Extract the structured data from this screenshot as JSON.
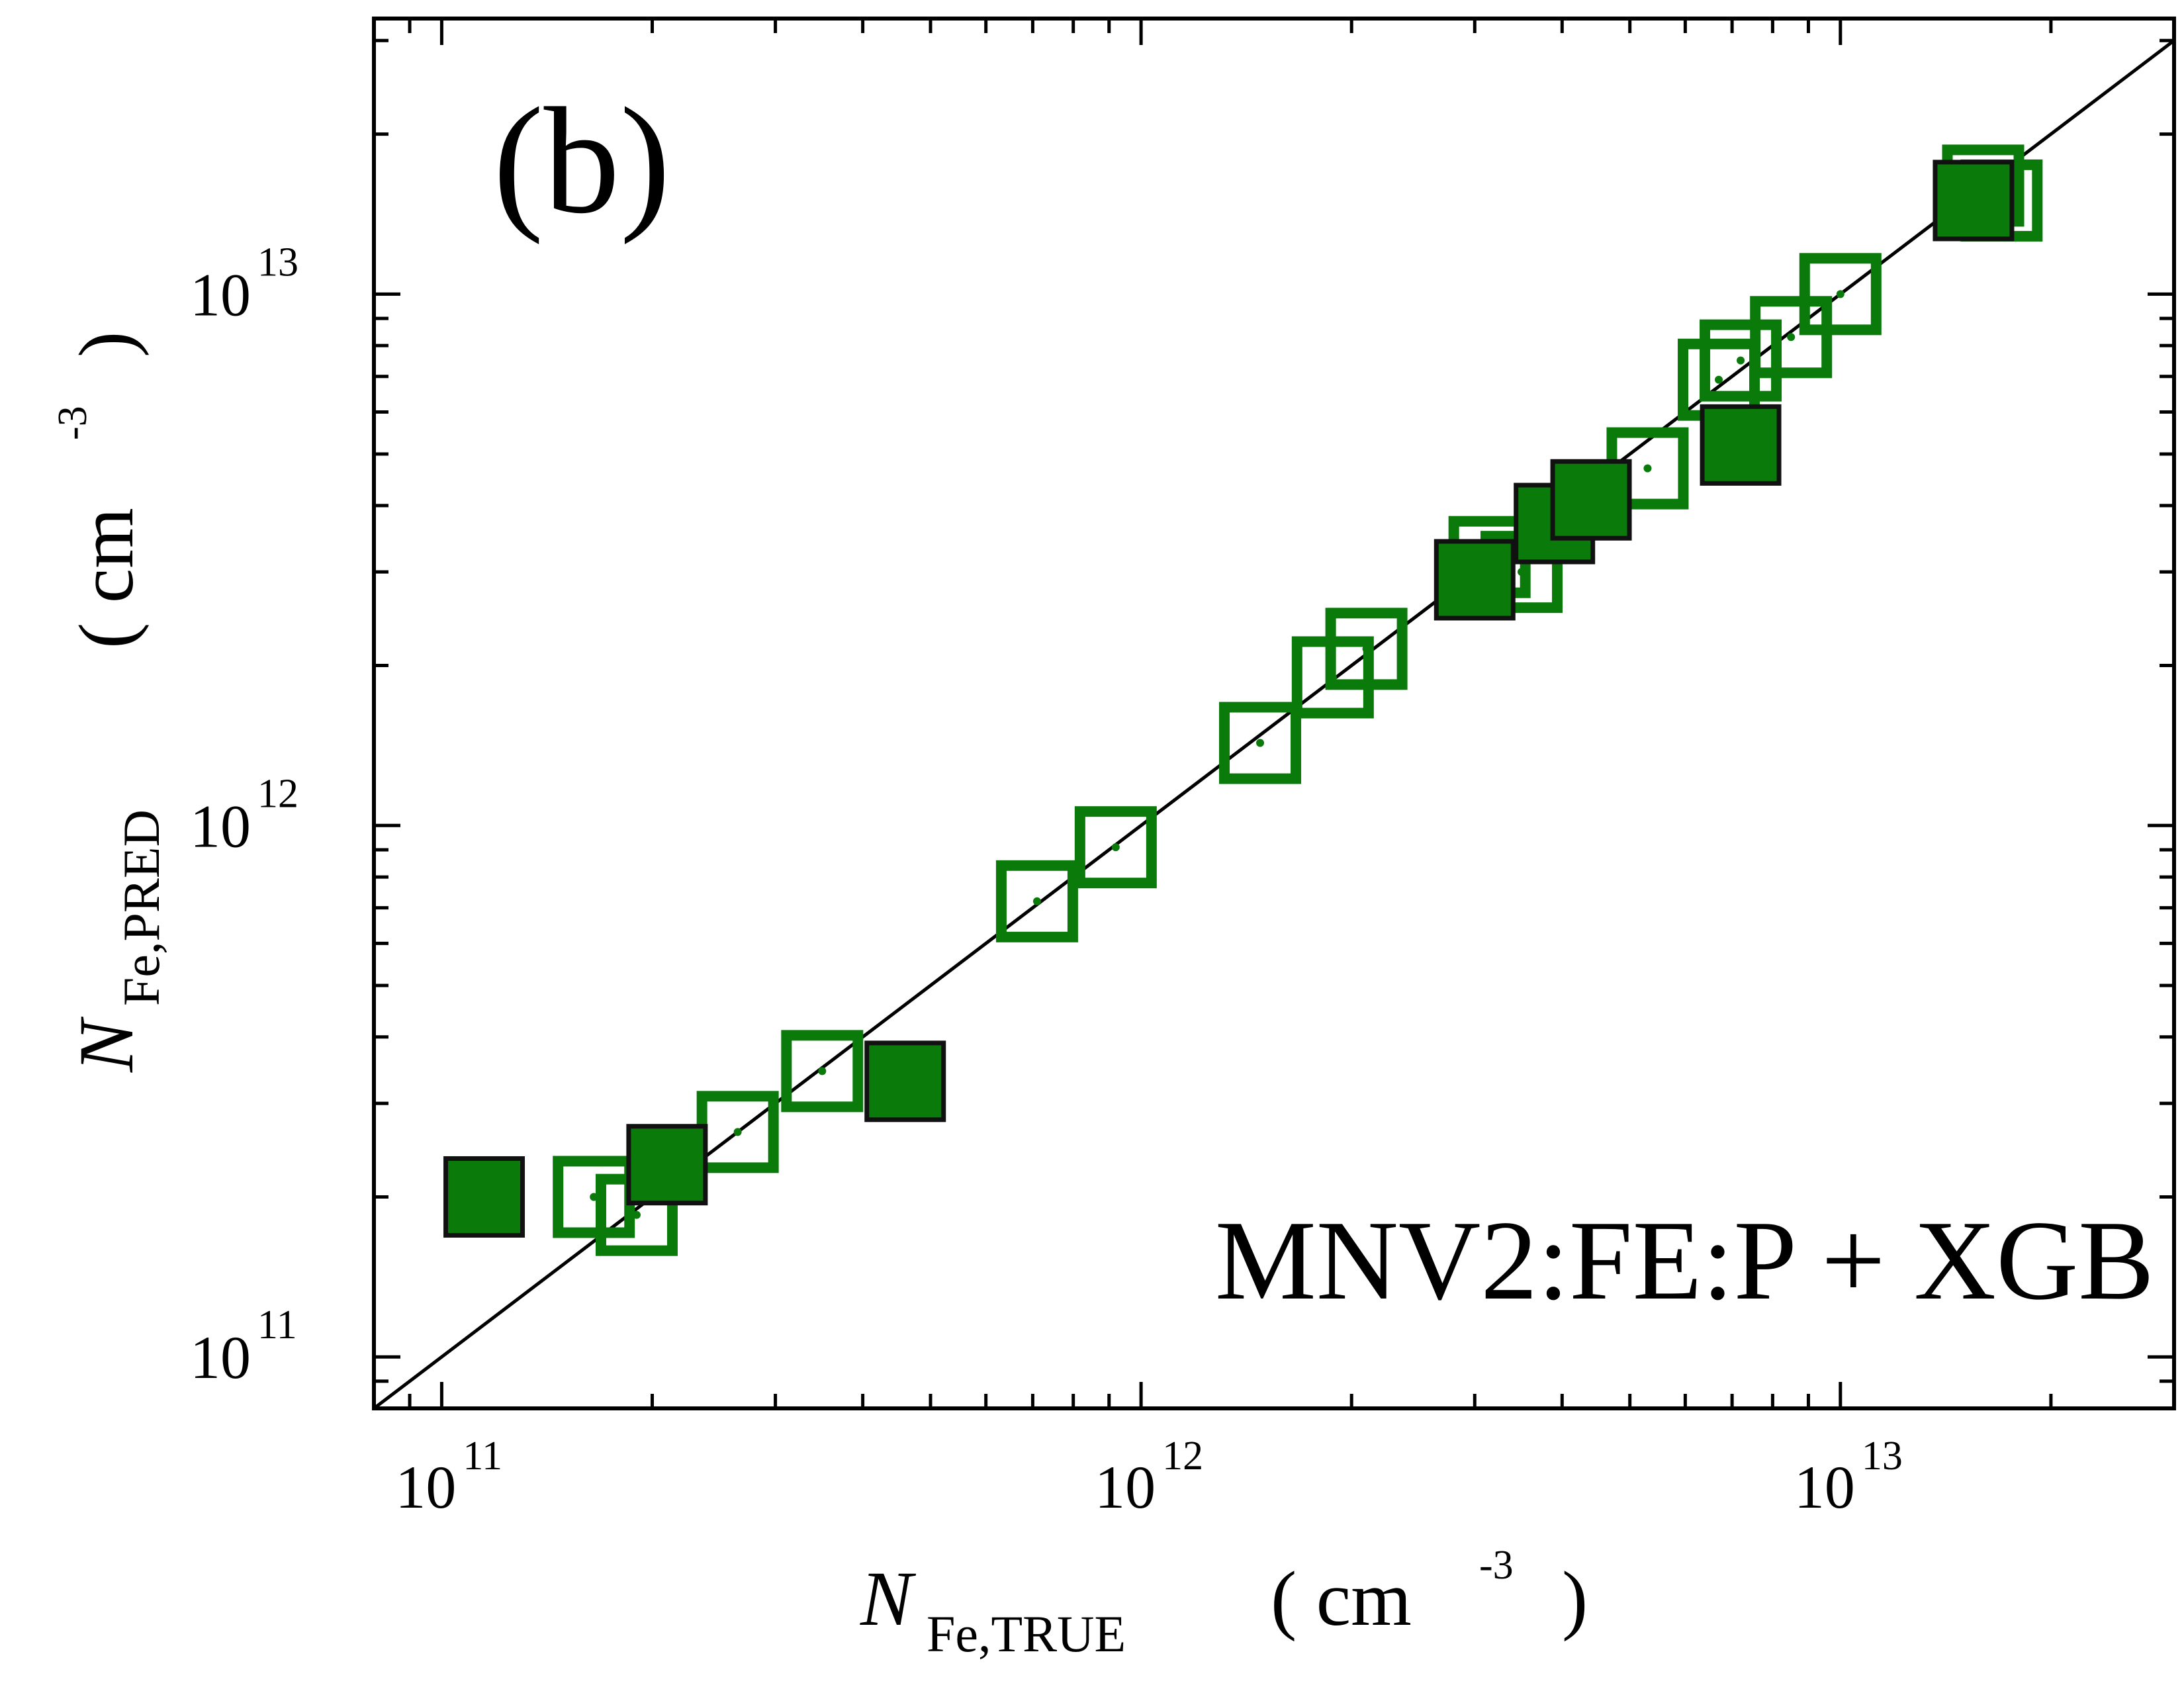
{
  "chart_data": {
    "type": "scatter",
    "panel_label": "(b)",
    "annotation": "MNV2:FE:P + XGB",
    "xlabel": {
      "main": "N",
      "sub": "Fe,TRUE",
      "unit_open": "( cm",
      "unit_exp": "-3",
      "unit_close": ")"
    },
    "ylabel": {
      "main": "N",
      "sub": "Fe,PRED",
      "unit_open": "( cm",
      "unit_exp": "-3",
      "unit_close": ")"
    },
    "x_scale": "log",
    "y_scale": "log",
    "xlim": [
      80000000000,
      30000000000000
    ],
    "ylim": [
      80000000000,
      33000000000000
    ],
    "x_ticks": [
      {
        "base": "10",
        "exp": "11",
        "value": 100000000000
      },
      {
        "base": "10",
        "exp": "12",
        "value": 1000000000000
      },
      {
        "base": "10",
        "exp": "13",
        "value": 10000000000000
      }
    ],
    "y_ticks": [
      {
        "base": "10",
        "exp": "11",
        "value": 100000000000
      },
      {
        "base": "10",
        "exp": "12",
        "value": 1000000000000
      },
      {
        "base": "10",
        "exp": "13",
        "value": 10000000000000
      }
    ],
    "reference_line": "y = x",
    "colors": {
      "marker": "#0a7a0a",
      "marker_edge_filled": "#111111",
      "line": "#000000"
    },
    "series": [
      {
        "marker": "open-square",
        "points": [
          {
            "x": 165000000000,
            "y": 200000000000
          },
          {
            "x": 190000000000,
            "y": 185000000000
          },
          {
            "x": 265000000000,
            "y": 265000000000
          },
          {
            "x": 350000000000,
            "y": 345000000000
          },
          {
            "x": 710000000000,
            "y": 720000000000
          },
          {
            "x": 920000000000,
            "y": 910000000000
          },
          {
            "x": 1480000000000,
            "y": 1430000000000
          },
          {
            "x": 1880000000000,
            "y": 1900000000000
          },
          {
            "x": 2100000000000,
            "y": 2150000000000
          },
          {
            "x": 3150000000000,
            "y": 3200000000000
          },
          {
            "x": 3500000000000,
            "y": 3000000000000
          },
          {
            "x": 5300000000000,
            "y": 4700000000000
          },
          {
            "x": 6700000000000,
            "y": 6900000000000
          },
          {
            "x": 7200000000000,
            "y": 7500000000000
          },
          {
            "x": 8500000000000,
            "y": 8300000000000
          },
          {
            "x": 10000000000000,
            "y": 10000000000000
          },
          {
            "x": 16000000000000,
            "y": 16000000000000
          },
          {
            "x": 17000000000000,
            "y": 15000000000000
          }
        ]
      },
      {
        "marker": "filled-square",
        "points": [
          {
            "x": 115000000000,
            "y": 200000000000
          },
          {
            "x": 210000000000,
            "y": 230000000000
          },
          {
            "x": 460000000000,
            "y": 330000000000
          },
          {
            "x": 3000000000000,
            "y": 2900000000000
          },
          {
            "x": 3900000000000,
            "y": 3700000000000
          },
          {
            "x": 4400000000000,
            "y": 4100000000000
          },
          {
            "x": 7200000000000,
            "y": 5200000000000
          },
          {
            "x": 15500000000000,
            "y": 15000000000000
          }
        ]
      }
    ]
  }
}
